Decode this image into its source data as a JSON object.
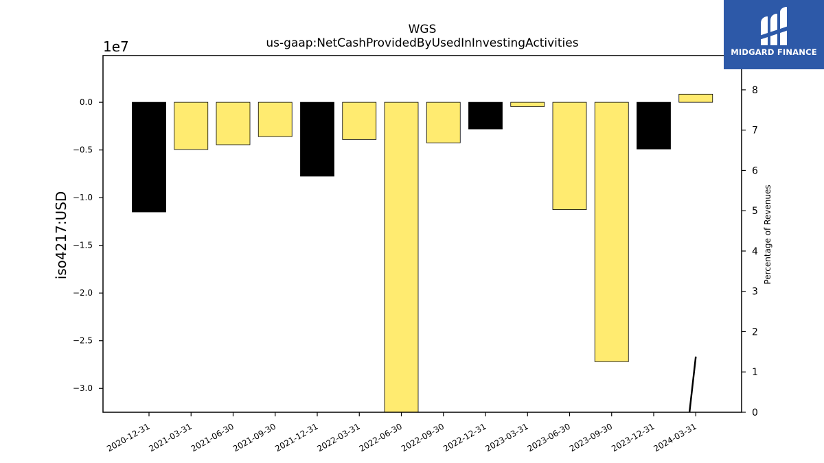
{
  "chart_data": {
    "type": "bar",
    "title_lines": [
      "WGS",
      "us-gaap:NetCashProvidedByUsedInInvestingActivities"
    ],
    "ylabel": "iso4217:USD",
    "y2label": "Percentage of Revenues",
    "offset_text": "1e7",
    "categories": [
      "2020-12-31",
      "2021-03-31",
      "2021-06-30",
      "2021-09-30",
      "2021-12-31",
      "2022-03-31",
      "2022-06-30",
      "2022-09-30",
      "2022-12-31",
      "2023-03-31",
      "2023-06-30",
      "2023-09-30",
      "2023-12-31",
      "2024-03-31"
    ],
    "values": [
      -11500000,
      -4950000,
      -4450000,
      -3600000,
      -7750000,
      -3900000,
      -33000000,
      -4250000,
      -2800000,
      -450000,
      -11250000,
      -27200000,
      -4900000,
      850000
    ],
    "bar_colors": [
      "#000000",
      "#ffeb70",
      "#ffeb70",
      "#ffeb70",
      "#000000",
      "#ffeb70",
      "#ffeb70",
      "#ffeb70",
      "#000000",
      "#ffeb70",
      "#ffeb70",
      "#ffeb70",
      "#000000",
      "#ffeb70"
    ],
    "ylim": [
      -32500000,
      4900000
    ],
    "yticks": [
      0,
      -0.5,
      -1.0,
      -1.5,
      -2.0,
      -2.5,
      -3.0
    ],
    "ytick_labels": [
      "0.0",
      "−0.5",
      "−1.0",
      "−1.5",
      "−2.0",
      "−2.5",
      "−3.0"
    ],
    "y2lim": [
      0,
      8.85
    ],
    "y2ticks": [
      0,
      1,
      2,
      3,
      4,
      5,
      6,
      7,
      8
    ],
    "y2tick_labels": [
      "0",
      "1",
      "2",
      "3",
      "4",
      "5",
      "6",
      "7",
      "8"
    ],
    "line_series": {
      "x_index": [
        12.85,
        13.0
      ],
      "y2": [
        0,
        1.38
      ],
      "color": "#000000"
    },
    "grid": false,
    "legend": "none"
  },
  "logo": {
    "text": "MIDGARD FINANCE",
    "bg_color": "#2d59a8"
  }
}
